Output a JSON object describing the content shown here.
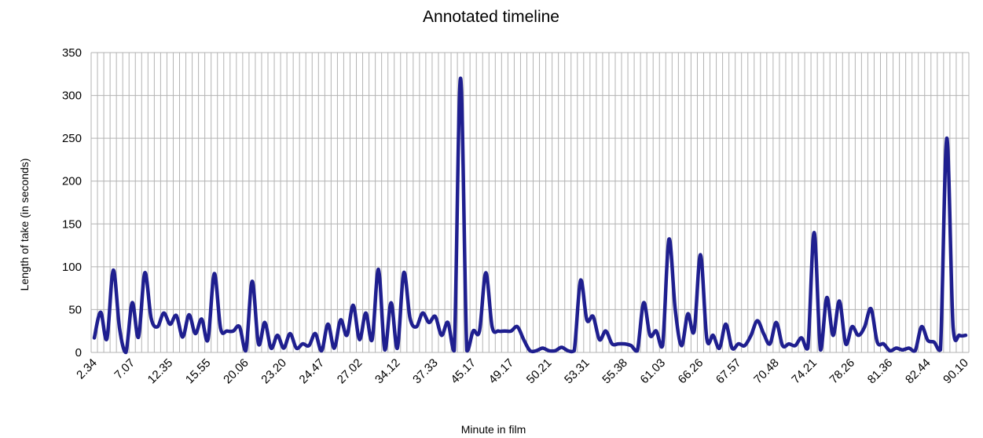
{
  "chart_data": {
    "type": "line",
    "title": "Annotated timeline",
    "xlabel": "Minute in film",
    "ylabel": "Length of take (in seconds)",
    "ylim": [
      0,
      350
    ],
    "yticks": [
      0,
      50,
      100,
      150,
      200,
      250,
      300,
      350
    ],
    "grid": true,
    "legend": "none",
    "series_color": "#1f1f8f",
    "x_tick_labels": [
      "2.34",
      "7.07",
      "12.35",
      "15.55",
      "20.06",
      "23.20",
      "24.47",
      "27.02",
      "34.12",
      "37.33",
      "45.17",
      "49.17",
      "50.21",
      "53.31",
      "55.38",
      "61.03",
      "66.26",
      "67.57",
      "70.48",
      "74.21",
      "78.26",
      "81.36",
      "82.44",
      "90.10"
    ],
    "series": [
      {
        "values": [
          17,
          47,
          16,
          96,
          28,
          0,
          58,
          18,
          93,
          40,
          30,
          46,
          33,
          43,
          18,
          44,
          22,
          39,
          15,
          92,
          28,
          25,
          25,
          30,
          2,
          83,
          10,
          35,
          5,
          20,
          5,
          22,
          5,
          10,
          8,
          22,
          2,
          33,
          5,
          38,
          20,
          55,
          15,
          46,
          15,
          97,
          3,
          58,
          5,
          93,
          40,
          30,
          46,
          35,
          42,
          20,
          35,
          2,
          320,
          2,
          25,
          25,
          93,
          30,
          25,
          25,
          25,
          30,
          15,
          2,
          2,
          5,
          2,
          2,
          6,
          2,
          2,
          84,
          38,
          42,
          15,
          25,
          10,
          10,
          10,
          8,
          2,
          58,
          20,
          25,
          8,
          132,
          50,
          8,
          45,
          25,
          114,
          16,
          20,
          5,
          33,
          5,
          10,
          8,
          20,
          37,
          22,
          10,
          35,
          8,
          10,
          8,
          17,
          5,
          140,
          3,
          64,
          20,
          60,
          10,
          30,
          20,
          30,
          51,
          12,
          10,
          2,
          5,
          3,
          5,
          2,
          30,
          14,
          12,
          3,
          250,
          30,
          20,
          20
        ]
      }
    ]
  }
}
